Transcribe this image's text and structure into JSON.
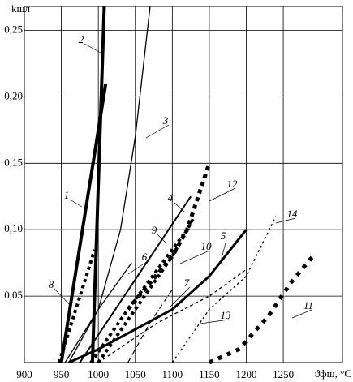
{
  "chart_data": {
    "type": "line",
    "xlabel": "ϑфш, °C",
    "ylabel": "kшл",
    "xlim": [
      900,
      1330
    ],
    "ylim": [
      0,
      0.268
    ],
    "xticks": [
      900,
      950,
      1000,
      1050,
      1100,
      1150,
      1200,
      1250
    ],
    "yticks": [
      {
        "value": 0.05,
        "label": "0,05"
      },
      {
        "value": 0.1,
        "label": "0,10"
      },
      {
        "value": 0.15,
        "label": "0,15"
      },
      {
        "value": 0.2,
        "label": "0,20"
      },
      {
        "value": 0.25,
        "label": "0,25"
      }
    ],
    "grid": true,
    "series": [
      {
        "name": "1",
        "color": "#000",
        "x": [
          950,
          1010
        ],
        "values": [
          0,
          0.21
        ]
      },
      {
        "name": "2",
        "color": "#000",
        "x": [
          992,
          1008
        ],
        "values": [
          0,
          0.268
        ]
      },
      {
        "name": "3",
        "color": "#000",
        "x": [
          960,
          1000,
          1030,
          1050,
          1070
        ],
        "values": [
          0,
          0.04,
          0.1,
          0.17,
          0.268
        ]
      },
      {
        "name": "4",
        "color": "#000",
        "x": [
          975,
          1125
        ],
        "values": [
          0,
          0.125
        ]
      },
      {
        "name": "5",
        "color": "#000",
        "x": [
          960,
          1000,
          1100,
          1150,
          1200
        ],
        "values": [
          0,
          0.01,
          0.04,
          0.065,
          0.1
        ]
      },
      {
        "name": "6",
        "color": "#000",
        "x": [
          955,
          1000,
          1045
        ],
        "values": [
          0,
          0.04,
          0.075
        ]
      },
      {
        "name": "7",
        "color": "#000",
        "x": [
          1040,
          1070,
          1100
        ],
        "values": [
          0,
          0.03,
          0.055
        ]
      },
      {
        "name": "8",
        "color": "#000",
        "x": [
          947,
          995
        ],
        "values": [
          0,
          0.085
        ]
      },
      {
        "name": "9",
        "color": "#000",
        "x": [
          990,
          1040,
          1080,
          1120
        ],
        "values": [
          0,
          0.04,
          0.07,
          0.1
        ]
      },
      {
        "name": "10",
        "color": "#000",
        "x": [
          1000,
          1050,
          1100,
          1130
        ],
        "values": [
          0,
          0.04,
          0.08,
          0.11
        ]
      },
      {
        "name": "11",
        "color": "#000",
        "x": [
          1150,
          1190,
          1230,
          1260,
          1290
        ],
        "values": [
          0,
          0.01,
          0.035,
          0.06,
          0.08
        ]
      },
      {
        "name": "12",
        "color": "#000",
        "x": [
          1040,
          1100,
          1120,
          1150
        ],
        "values": [
          0.04,
          0.08,
          0.1,
          0.15
        ]
      },
      {
        "name": "13",
        "color": "#000",
        "x": [
          1000,
          1080,
          1150,
          1200
        ],
        "values": [
          0,
          0.03,
          0.05,
          0.07
        ]
      },
      {
        "name": "14",
        "color": "#000",
        "x": [
          1100,
          1150,
          1200,
          1240
        ],
        "values": [
          0,
          0.04,
          0.065,
          0.11
        ]
      }
    ]
  }
}
